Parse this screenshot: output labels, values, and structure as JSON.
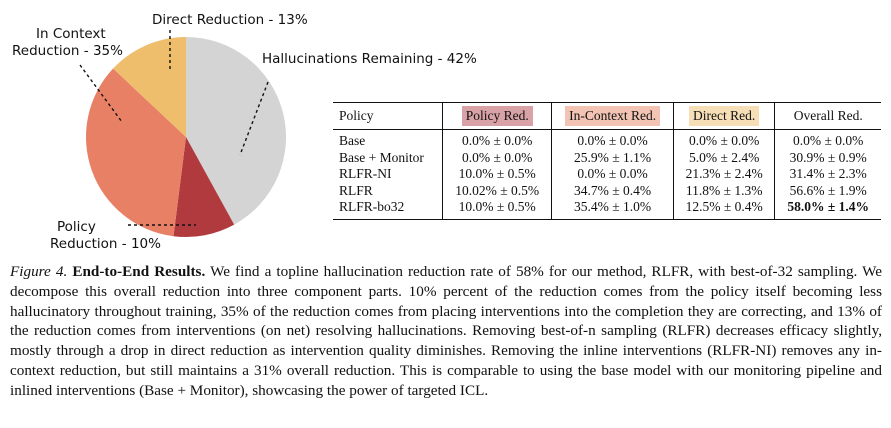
{
  "chart_data": {
    "type": "pie",
    "title": "",
    "slices": [
      {
        "label": "Hallucinations Remaining - 42%",
        "value": 42,
        "color": "#d4d4d4"
      },
      {
        "label": "Policy Reduction - 10%",
        "value": 10,
        "color": "#b03a3e"
      },
      {
        "label": "In Context Reduction - 35%",
        "value": 35,
        "color": "#e88066"
      },
      {
        "label": "Direct Reduction - 13%",
        "value": 13,
        "color": "#eebe6c"
      }
    ]
  },
  "pie_labels": {
    "direct": "Direct Reduction - 13%",
    "remaining": "Hallucinations Remaining - 42%",
    "in_context_line1": "In Context",
    "in_context_line2": "Reduction - 35%",
    "policy_line1": "Policy",
    "policy_line2": "Reduction - 10%"
  },
  "table": {
    "headers": {
      "policy": "Policy",
      "policy_red": "Policy Red.",
      "in_context_red": "In-Context Red.",
      "direct_red": "Direct Red.",
      "overall_red": "Overall Red."
    },
    "header_colors": {
      "policy_red": "#d9a2a6",
      "in_context_red": "#f3c4b4",
      "direct_red": "#f6dfb6"
    },
    "rows": [
      {
        "policy": "Base",
        "policy_red": "0.0% ± 0.0%",
        "in_context_red": "0.0% ± 0.0%",
        "direct_red": "0.0% ± 0.0%",
        "overall_red": "0.0% ± 0.0%"
      },
      {
        "policy": "Base + Monitor",
        "policy_red": "0.0% ± 0.0%",
        "in_context_red": "25.9% ± 1.1%",
        "direct_red": "5.0% ± 2.4%",
        "overall_red": "30.9% ± 0.9%"
      },
      {
        "policy": "RLFR-NI",
        "policy_red": "10.0% ± 0.5%",
        "in_context_red": "0.0% ± 0.0%",
        "direct_red": "21.3% ± 2.4%",
        "overall_red": "31.4% ± 2.3%"
      },
      {
        "policy": "RLFR",
        "policy_red": "10.02% ± 0.5%",
        "in_context_red": "34.7% ± 0.4%",
        "direct_red": "11.8% ± 1.3%",
        "overall_red": "56.6% ± 1.9%"
      },
      {
        "policy": "RLFR-bo32",
        "policy_red": "10.0% ± 0.5%",
        "in_context_red": "35.4% ± 1.0%",
        "direct_red": "12.5% ± 0.4%",
        "overall_red": "58.0% ± 1.4%"
      }
    ]
  },
  "caption": {
    "label": "Figure 4.",
    "title": "End-to-End Results.",
    "text": "We find a topline hallucination reduction rate of 58% for our method, RLFR, with best-of-32 sampling. We decompose this overall reduction into three component parts. 10% percent of the reduction comes from the policy itself becoming less hallucinatory throughout training, 35% of the reduction comes from placing interventions into the completion they are correcting, and 13% of the reduction comes from interventions (on net) resolving hallucinations. Removing best-of-n sampling (RLFR) decreases efficacy slightly, mostly through a drop in direct reduction as intervention quality diminishes. Removing the inline interventions (RLFR-NI) removes any in-context reduction, but still maintains a 31% overall reduction. This is comparable to using the base model with our monitoring pipeline and inlined interventions (Base + Monitor), showcasing the power of targeted ICL."
  }
}
